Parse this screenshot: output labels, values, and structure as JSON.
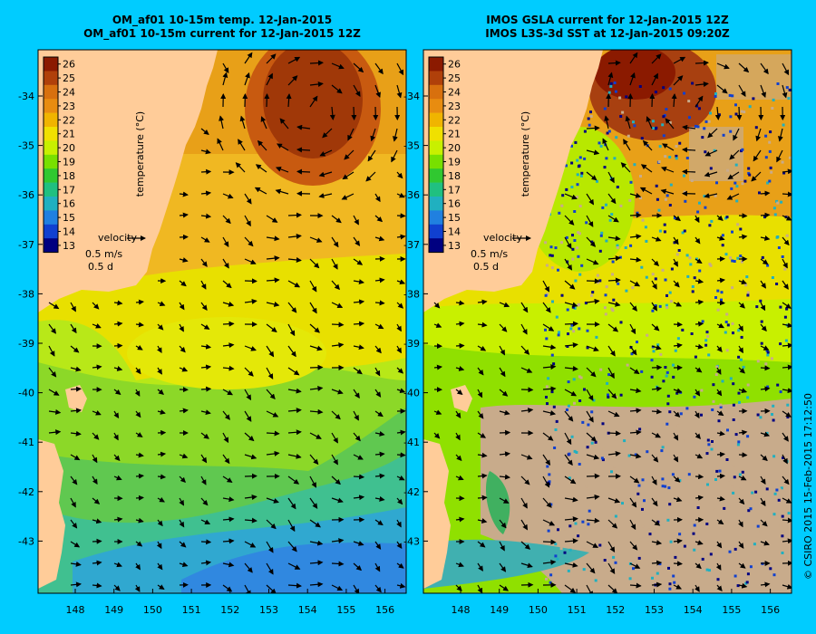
{
  "panels": [
    {
      "id": "model",
      "title_line1": "OM_af01 10-15m temp. 12-Jan-2015",
      "title_line2": "OM_af01 10-15m current for 12-Jan-2015 12Z"
    },
    {
      "id": "observed",
      "title_line1": "IMOS GSLA current for 12-Jan-2015 12Z",
      "title_line2": "IMOS L3S-3d SST at 12-Jan-2015 09:20Z"
    }
  ],
  "colorbar": {
    "label": "temperature (°C)",
    "ticks": [
      "26",
      "25",
      "24",
      "23",
      "22",
      "21",
      "20",
      "19",
      "18",
      "17",
      "16",
      "15",
      "14",
      "13"
    ],
    "colors": [
      "#8b1a00",
      "#b0400a",
      "#d8700e",
      "#e88c10",
      "#f0b400",
      "#f0e000",
      "#c8f000",
      "#78e000",
      "#30c830",
      "#20c080",
      "#20b0c0",
      "#2080e0",
      "#1040d0",
      "#000080"
    ]
  },
  "velocity_legend": {
    "title": "velocity",
    "speed": "0.5 m/s",
    "duration": "0.5 d"
  },
  "axes": {
    "x_ticks": [
      "148",
      "149",
      "150",
      "151",
      "152",
      "153",
      "154",
      "155",
      "156"
    ],
    "y_ticks": [
      "-34",
      "-35",
      "-36",
      "-37",
      "-38",
      "-39",
      "-40",
      "-41",
      "-42",
      "-43"
    ]
  },
  "credit": "© CSIRO 2015   15-Feb-2015 17:12:50",
  "colors": {
    "background": "#00ccff",
    "land": "#ffcc99",
    "no_data": "#c8ab8b"
  }
}
